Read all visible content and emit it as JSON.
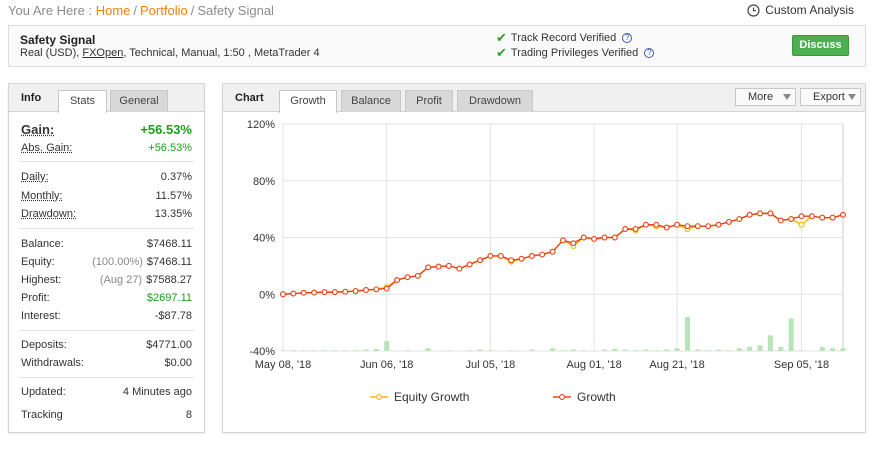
{
  "breadcrumb": {
    "prefix": "You Are Here :",
    "home": "Home",
    "portfolio": "Portfolio",
    "current": "Safety Signal",
    "sep": "/"
  },
  "custom_analysis": "Custom Analysis",
  "system": {
    "name": "Safety Signal",
    "details_pre": "Real (USD), ",
    "broker": "FXOpen",
    "details_post": ", Technical, Manual, 1:50 , MetaTrader 4",
    "verified": [
      "Track Record Verified",
      "Trading Privileges Verified"
    ],
    "discuss": "Discuss"
  },
  "info": {
    "label": "Info",
    "tabs": [
      "Stats",
      "General"
    ],
    "gain_label": "Gain:",
    "gain": "+56.53%",
    "abs_gain_label": "Abs. Gain:",
    "abs_gain": "+56.53%",
    "daily_label": "Daily:",
    "daily": "0.37%",
    "monthly_label": "Monthly:",
    "monthly": "11.57%",
    "drawdown_label": "Drawdown:",
    "drawdown": "13.35%",
    "balance_label": "Balance:",
    "balance": "$7468.11",
    "equity_label": "Equity:",
    "equity_pct": "(100.00%)",
    "equity": "$7468.11",
    "highest_label": "Highest:",
    "highest_date": "(Aug 27)",
    "highest": "$7588.27",
    "profit_label": "Profit:",
    "profit": "$2697.11",
    "interest_label": "Interest:",
    "interest": "-$87.78",
    "deposits_label": "Deposits:",
    "deposits": "$4771.00",
    "withdrawals_label": "Withdrawals:",
    "withdrawals": "$0.00",
    "updated_label": "Updated:",
    "updated": "4 Minutes ago",
    "tracking_label": "Tracking",
    "tracking": "8"
  },
  "chart_panel": {
    "label": "Chart",
    "tabs": [
      "Growth",
      "Balance",
      "Profit",
      "Drawdown"
    ],
    "more": "More",
    "export": "Export"
  },
  "colors": {
    "growth": "#e8431c",
    "equity": "#f5b800",
    "bars": "#b9e3b9",
    "positive": "#1c9e1c",
    "accent": "#ff7f00"
  },
  "chart_data": {
    "type": "line",
    "ylim": [
      -40,
      120
    ],
    "yticks": [
      "120%",
      "80%",
      "40%",
      "0%",
      "-40%"
    ],
    "yticks_values": [
      120,
      80,
      40,
      0,
      -40
    ],
    "xticks": [
      "May 08, '18",
      "Jun 06, '18",
      "Jul 05, '18",
      "Aug 01, '18",
      "Aug 21, '18",
      "Sep 05, '18"
    ],
    "xticks_index": [
      0,
      10,
      20,
      30,
      38,
      50
    ],
    "legend": [
      "Equity Growth",
      "Growth"
    ],
    "series": [
      {
        "name": "Growth",
        "values": [
          0,
          0.5,
          1,
          1.2,
          1.5,
          1.5,
          1.8,
          2.2,
          3,
          3.5,
          4,
          10,
          12,
          13,
          19,
          19.5,
          20,
          18,
          21,
          24,
          27,
          27,
          24,
          25,
          27,
          28,
          30,
          38,
          36,
          40,
          39,
          40,
          40,
          46,
          46,
          49,
          49,
          47,
          49,
          48,
          48,
          48,
          49,
          51,
          53,
          56,
          57,
          57,
          52,
          53,
          55,
          55,
          54,
          54,
          56
        ]
      },
      {
        "name": "Equity Growth",
        "values": [
          0,
          0.5,
          1,
          1.2,
          1.5,
          1.5,
          1.8,
          2.2,
          3,
          3.5,
          5,
          10,
          12,
          13,
          19,
          19.5,
          20,
          18,
          21,
          24,
          27,
          27,
          23,
          25,
          27,
          28,
          30,
          38,
          34,
          40,
          39,
          40,
          40,
          46,
          45,
          49,
          48,
          47,
          49,
          46,
          48,
          48,
          49,
          51,
          53,
          56,
          57,
          57,
          52,
          53,
          49,
          55,
          54,
          54,
          56
        ]
      },
      {
        "name": "bars",
        "values": [
          0.5,
          0.5,
          0.5,
          0.5,
          0.5,
          0.5,
          0.5,
          0.5,
          1,
          1.5,
          7,
          0,
          0.5,
          0,
          2,
          0,
          0.5,
          0,
          0.5,
          1,
          0.5,
          0,
          0.5,
          0,
          1,
          0,
          2,
          0.5,
          1,
          0.5,
          0,
          1,
          1.5,
          1,
          0.5,
          1,
          0.5,
          1,
          2,
          24,
          1,
          0.5,
          1,
          0.5,
          2,
          3,
          4,
          11,
          3,
          23,
          0.5,
          0,
          3,
          2,
          2
        ]
      }
    ]
  }
}
